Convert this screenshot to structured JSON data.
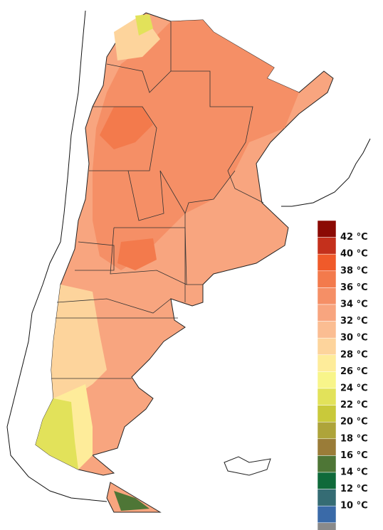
{
  "legend": {
    "labels": [
      "42 °C",
      "40 °C",
      "38 °C",
      "36 °C",
      "34 °C",
      "32 °C",
      "30 °C",
      "28 °C",
      "26 °C",
      "24 °C",
      "22 °C",
      "20 °C",
      "18 °C",
      "16 °C",
      "14 °C",
      "12 °C",
      "10 °C"
    ],
    "colors": [
      "#8b0a04",
      "#c4301c",
      "#f05a2a",
      "#f37a4c",
      "#f58f66",
      "#f8a57f",
      "#fbbd92",
      "#fdd49c",
      "#feec9a",
      "#f8f58a",
      "#e2e25a",
      "#c9c93a",
      "#aea43a",
      "#9a7c38",
      "#4e7636",
      "#0f6a3a",
      "#356c74",
      "#3a6aa8",
      "#8a8a8a"
    ]
  }
}
